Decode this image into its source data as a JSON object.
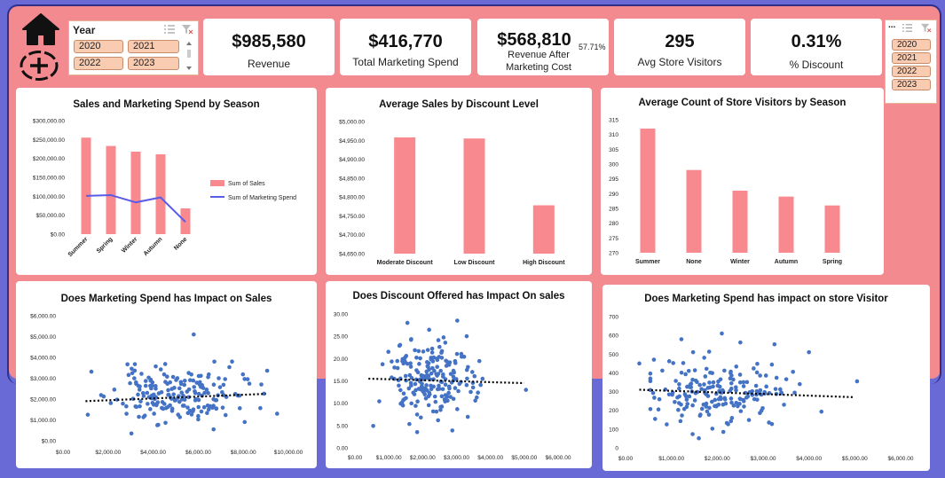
{
  "kpis": {
    "revenue_value": "$985,580",
    "revenue_label": "Revenue",
    "marketing_value": "$416,770",
    "marketing_label": "Total Marketing Spend",
    "after_value": "$568,810",
    "after_pct": "57.71%",
    "after_label": "Revenue After Marketing Cost",
    "visitors_value": "295",
    "visitors_label": "Avg Store Visitors",
    "discount_value": "0.31%",
    "discount_label": "% Discount"
  },
  "slicer_left": {
    "title": "Year",
    "items": [
      "2020",
      "2021",
      "2022",
      "2023"
    ]
  },
  "slicer_right": {
    "title": "...",
    "items": [
      "2020",
      "2021",
      "2022",
      "2023"
    ]
  },
  "colors": {
    "bar": "#f8898e",
    "line": "#5b5bea",
    "dot": "#4472c4",
    "bg_pink": "#f38a8f",
    "bg_blue": "#6a6ad6"
  },
  "icons": {
    "home": "home-icon",
    "add": "add-circle-icon"
  },
  "chart_data": [
    {
      "type": "bar",
      "title": "Sales and Marketing Spend by Season",
      "categories": [
        "Summer",
        "Spring",
        "Winter",
        "Autumn",
        "None"
      ],
      "series": [
        {
          "name": "Sum of Sales",
          "type": "bar",
          "values": [
            255000,
            233000,
            218000,
            211000,
            68000
          ]
        },
        {
          "name": "Sum of Marketing Spend",
          "type": "line",
          "values": [
            101000,
            103000,
            84000,
            97000,
            32000
          ]
        }
      ],
      "yticks": [
        "$0.00",
        "$50,000.00",
        "$100,000.00",
        "$150,000.00",
        "$200,000.00",
        "$250,000.00",
        "$300,000.00"
      ],
      "ylim": [
        0,
        300000
      ]
    },
    {
      "type": "bar",
      "title": "Average Sales by Discount Level",
      "categories": [
        "Moderate Discount",
        "Low Discount",
        "High Discount"
      ],
      "values": [
        4958,
        4955,
        4778
      ],
      "yticks": [
        "$4,650.00",
        "$4,700.00",
        "$4,750.00",
        "$4,800.00",
        "$4,850.00",
        "$4,900.00",
        "$4,950.00",
        "$5,000.00"
      ],
      "ylim": [
        4650,
        5000
      ]
    },
    {
      "type": "bar",
      "title": "Average Count of Store Visitors by Season",
      "categories": [
        "Summer",
        "None",
        "Winter",
        "Autumn",
        "Spring"
      ],
      "values": [
        312,
        298,
        291,
        289,
        286
      ],
      "yticks": [
        "270",
        "275",
        "280",
        "285",
        "290",
        "295",
        "300",
        "305",
        "310",
        "315"
      ],
      "ylim": [
        270,
        315
      ]
    },
    {
      "type": "scatter",
      "title": "Does Marketing Spend has Impact on Sales",
      "xticks": [
        "$0.00",
        "$2,000.00",
        "$4,000.00",
        "$6,000.00",
        "$8,000.00",
        "$10,000.00"
      ],
      "yticks": [
        "$0.00",
        "$1,000.00",
        "$2,000.00",
        "$3,000.00",
        "$4,000.00",
        "$5,000.00",
        "$6,000.00"
      ],
      "xlim": [
        0,
        10000
      ],
      "ylim": [
        0,
        6000
      ],
      "trend": [
        [
          1000,
          1900
        ],
        [
          9000,
          2250
        ]
      ],
      "cluster": {
        "cx": 5000,
        "cy": 2200,
        "sx": 1400,
        "sy": 650,
        "n": 190,
        "seed": 11
      },
      "points": [
        [
          5800,
          5100
        ],
        [
          1100,
          1250
        ],
        [
          9500,
          1300
        ],
        [
          8800,
          2700
        ],
        [
          7500,
          3800
        ]
      ]
    },
    {
      "type": "scatter",
      "title": "Does Discount Offered has Impact On sales",
      "xticks": [
        "$0.00",
        "$1,000.00",
        "$2,000.00",
        "$3,000.00",
        "$4,000.00",
        "$5,000.00",
        "$6,000.00"
      ],
      "yticks": [
        "0.00",
        "5.00",
        "10.00",
        "15.00",
        "20.00",
        "25.00",
        "30.00"
      ],
      "xlim": [
        0,
        6000
      ],
      "ylim": [
        0,
        30
      ],
      "trend": [
        [
          400,
          15.5
        ],
        [
          5000,
          14.5
        ]
      ],
      "cluster": {
        "cx": 2200,
        "cy": 15,
        "sx": 650,
        "sy": 4.5,
        "n": 200,
        "seed": 23
      },
      "points": [
        [
          5050,
          13
        ],
        [
          1550,
          28
        ],
        [
          3300,
          25
        ]
      ]
    },
    {
      "type": "scatter",
      "title": "Does Marketing Spend has impact on store Visitor",
      "xticks": [
        "$0.00",
        "$1,000.00",
        "$2,000.00",
        "$3,000.00",
        "$4,000.00",
        "$5,000.00",
        "$6,000.00"
      ],
      "yticks": [
        "0",
        "100",
        "200",
        "300",
        "400",
        "500",
        "600",
        "700"
      ],
      "xlim": [
        0,
        6000
      ],
      "ylim": [
        0,
        700
      ],
      "trend": [
        [
          300,
          310
        ],
        [
          5000,
          270
        ]
      ],
      "cluster": {
        "cx": 2100,
        "cy": 300,
        "sx": 750,
        "sy": 90,
        "n": 190,
        "seed": 37
      },
      "points": [
        [
          2100,
          610
        ],
        [
          5050,
          355
        ],
        [
          300,
          450
        ],
        [
          4000,
          510
        ]
      ]
    }
  ]
}
